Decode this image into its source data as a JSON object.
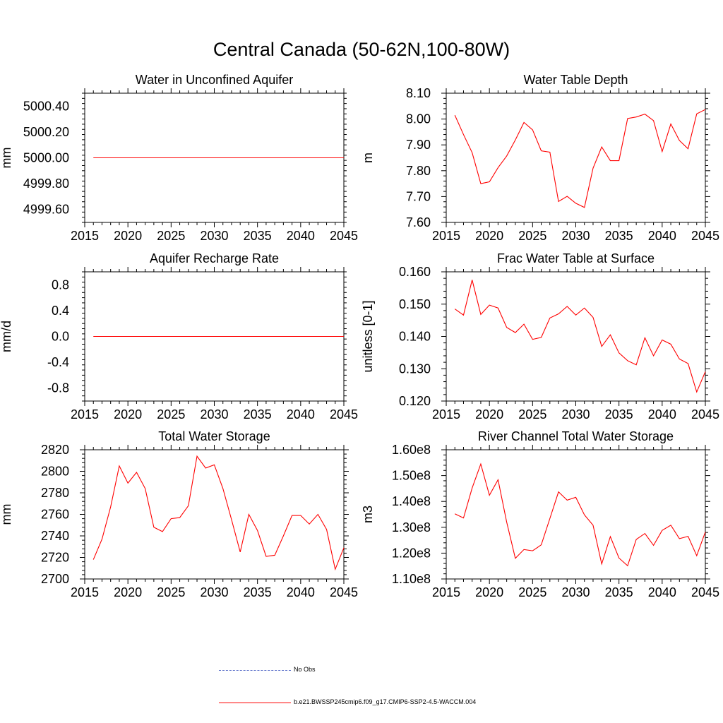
{
  "title": "Central Canada (50-62N,100-80W)",
  "colors": {
    "model": "#ff0000",
    "obs": "#5b6fc9",
    "axis": "#000000"
  },
  "legend": {
    "obs_label": "No Obs",
    "model_label": "b.e21.BWSSP245cmip6.f09_g17.CMIP6-SSP2-4.5-WACCM.004"
  },
  "chart_data": [
    {
      "type": "line",
      "title": "Water in Unconfined Aquifer",
      "ylabel": "mm",
      "xlim": [
        2015,
        2045
      ],
      "ylim": [
        4999.5,
        5000.5
      ],
      "xticks": [
        2015,
        2020,
        2025,
        2030,
        2035,
        2040,
        2045
      ],
      "yticks": [
        4999.6,
        4999.8,
        5000.0,
        5000.2,
        5000.4
      ],
      "ytick_labels": [
        "4999.60",
        "4999.80",
        "5000.00",
        "5000.20",
        "5000.40"
      ],
      "x": [
        2016,
        2017,
        2018,
        2019,
        2020,
        2021,
        2022,
        2023,
        2024,
        2025,
        2026,
        2027,
        2028,
        2029,
        2030,
        2031,
        2032,
        2033,
        2034,
        2035,
        2036,
        2037,
        2038,
        2039,
        2040,
        2041,
        2042,
        2043,
        2044,
        2045
      ],
      "series": [
        {
          "values": [
            5000,
            5000,
            5000,
            5000,
            5000,
            5000,
            5000,
            5000,
            5000,
            5000,
            5000,
            5000,
            5000,
            5000,
            5000,
            5000,
            5000,
            5000,
            5000,
            5000,
            5000,
            5000,
            5000,
            5000,
            5000,
            5000,
            5000,
            5000,
            5000,
            5000
          ]
        }
      ]
    },
    {
      "type": "line",
      "title": "Water Table Depth",
      "ylabel": "m",
      "xlim": [
        2015,
        2045
      ],
      "ylim": [
        7.6,
        8.1
      ],
      "xticks": [
        2015,
        2020,
        2025,
        2030,
        2035,
        2040,
        2045
      ],
      "yticks": [
        7.6,
        7.7,
        7.8,
        7.9,
        8.0,
        8.1
      ],
      "ytick_labels": [
        "7.60",
        "7.70",
        "7.80",
        "7.90",
        "8.00",
        "8.10"
      ],
      "x": [
        2016,
        2017,
        2018,
        2019,
        2020,
        2021,
        2022,
        2023,
        2024,
        2025,
        2026,
        2027,
        2028,
        2029,
        2030,
        2031,
        2032,
        2033,
        2034,
        2035,
        2036,
        2037,
        2038,
        2039,
        2040,
        2041,
        2042,
        2043,
        2044,
        2045
      ],
      "series": [
        {
          "values": [
            8.015,
            7.94,
            7.87,
            7.75,
            7.757,
            7.812,
            7.857,
            7.919,
            7.987,
            7.958,
            7.877,
            7.872,
            7.681,
            7.701,
            7.674,
            7.658,
            7.81,
            7.892,
            7.839,
            7.839,
            8.002,
            8.008,
            8.019,
            7.994,
            7.874,
            7.981,
            7.917,
            7.885,
            8.02,
            8.037
          ]
        }
      ]
    },
    {
      "type": "line",
      "title": "Aquifer Recharge Rate",
      "ylabel": "mm/d",
      "xlim": [
        2015,
        2045
      ],
      "ylim": [
        -1.0,
        1.0
      ],
      "xticks": [
        2015,
        2020,
        2025,
        2030,
        2035,
        2040,
        2045
      ],
      "yticks": [
        -0.8,
        -0.4,
        0.0,
        0.4,
        0.8
      ],
      "ytick_labels": [
        "-0.8",
        "-0.4",
        "0.0",
        "0.4",
        "0.8"
      ],
      "x": [
        2016,
        2017,
        2018,
        2019,
        2020,
        2021,
        2022,
        2023,
        2024,
        2025,
        2026,
        2027,
        2028,
        2029,
        2030,
        2031,
        2032,
        2033,
        2034,
        2035,
        2036,
        2037,
        2038,
        2039,
        2040,
        2041,
        2042,
        2043,
        2044,
        2045
      ],
      "series": [
        {
          "values": [
            0,
            0,
            0,
            0,
            0,
            0,
            0,
            0,
            0,
            0,
            0,
            0,
            0,
            0,
            0,
            0,
            0,
            0,
            0,
            0,
            0,
            0,
            0,
            0,
            0,
            0,
            0,
            0,
            0,
            0
          ]
        }
      ]
    },
    {
      "type": "line",
      "title": "Frac Water Table at Surface",
      "ylabel": "unitless [0-1]",
      "xlim": [
        2015,
        2045
      ],
      "ylim": [
        0.12,
        0.16
      ],
      "xticks": [
        2015,
        2020,
        2025,
        2030,
        2035,
        2040,
        2045
      ],
      "yticks": [
        0.12,
        0.13,
        0.14,
        0.15,
        0.16
      ],
      "ytick_labels": [
        "0.120",
        "0.130",
        "0.140",
        "0.150",
        "0.160"
      ],
      "x": [
        2016,
        2017,
        2018,
        2019,
        2020,
        2021,
        2022,
        2023,
        2024,
        2025,
        2026,
        2027,
        2028,
        2029,
        2030,
        2031,
        2032,
        2033,
        2034,
        2035,
        2036,
        2037,
        2038,
        2039,
        2040,
        2041,
        2042,
        2043,
        2044,
        2045
      ],
      "series": [
        {
          "values": [
            0.1485,
            0.1466,
            0.1575,
            0.1468,
            0.1497,
            0.1488,
            0.1428,
            0.1412,
            0.1438,
            0.1391,
            0.1397,
            0.1457,
            0.147,
            0.1493,
            0.1466,
            0.1488,
            0.1459,
            0.1369,
            0.1405,
            0.1349,
            0.1325,
            0.1312,
            0.1396,
            0.134,
            0.1389,
            0.1376,
            0.133,
            0.1316,
            0.1228,
            0.1291
          ]
        }
      ]
    },
    {
      "type": "line",
      "title": "Total Water Storage",
      "ylabel": "mm",
      "xlim": [
        2015,
        2045
      ],
      "ylim": [
        2700,
        2820
      ],
      "xticks": [
        2015,
        2020,
        2025,
        2030,
        2035,
        2040,
        2045
      ],
      "yticks": [
        2700,
        2720,
        2740,
        2760,
        2780,
        2800,
        2820
      ],
      "ytick_labels": [
        "2700",
        "2720",
        "2740",
        "2760",
        "2780",
        "2800",
        "2820"
      ],
      "x": [
        2016,
        2017,
        2018,
        2019,
        2020,
        2021,
        2022,
        2023,
        2024,
        2025,
        2026,
        2027,
        2028,
        2029,
        2030,
        2031,
        2032,
        2033,
        2034,
        2035,
        2036,
        2037,
        2038,
        2039,
        2040,
        2041,
        2042,
        2043,
        2044,
        2045
      ],
      "series": [
        {
          "values": [
            2718,
            2737,
            2767,
            2805,
            2789,
            2799,
            2784,
            2748,
            2744,
            2756,
            2757,
            2768,
            2814,
            2803,
            2806,
            2784,
            2755,
            2725,
            2760,
            2745,
            2721,
            2722,
            2740,
            2759,
            2759,
            2751,
            2760,
            2746,
            2709,
            2729
          ]
        }
      ]
    },
    {
      "type": "line",
      "title": "River Channel Total Water Storage",
      "ylabel": "m3",
      "xlim": [
        2015,
        2045
      ],
      "ylim": [
        110000000,
        160000000
      ],
      "xticks": [
        2015,
        2020,
        2025,
        2030,
        2035,
        2040,
        2045
      ],
      "yticks": [
        110000000,
        120000000,
        130000000,
        140000000,
        150000000,
        160000000
      ],
      "ytick_labels": [
        "1.10e8",
        "1.20e8",
        "1.30e8",
        "1.40e8",
        "1.50e8",
        "1.60e8"
      ],
      "x": [
        2016,
        2017,
        2018,
        2019,
        2020,
        2021,
        2022,
        2023,
        2024,
        2025,
        2026,
        2027,
        2028,
        2029,
        2030,
        2031,
        2032,
        2033,
        2034,
        2035,
        2036,
        2037,
        2038,
        2039,
        2040,
        2041,
        2042,
        2043,
        2044,
        2045
      ],
      "series": [
        {
          "values": [
            135200000,
            133600000,
            145200000,
            154500000,
            142400000,
            148400000,
            132000000,
            118000000,
            121400000,
            120900000,
            123200000,
            133400000,
            143700000,
            140500000,
            141600000,
            134800000,
            130800000,
            115800000,
            126400000,
            118100000,
            115100000,
            125300000,
            127600000,
            123000000,
            128800000,
            130800000,
            125600000,
            126500000,
            119000000,
            128200000
          ]
        }
      ]
    }
  ]
}
